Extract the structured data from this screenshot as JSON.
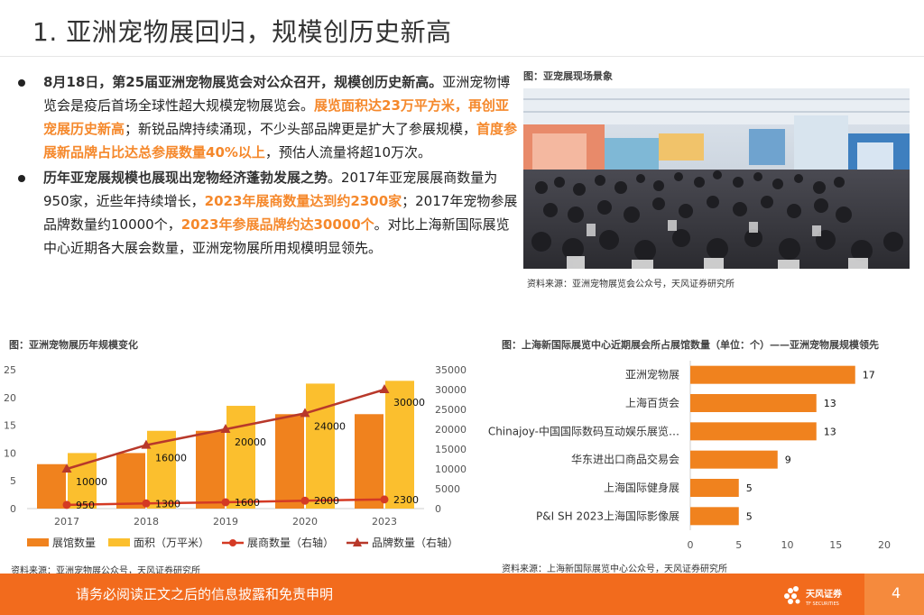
{
  "page": {
    "title": "1. 亚洲宠物展回归，规模创历史新高",
    "number": "4"
  },
  "bullets": [
    {
      "segments": [
        {
          "t": "8月18日，第25届亚洲宠物展览会对公众召开，规模创历史新高。",
          "s": "bold"
        },
        {
          "t": "亚洲宠物博览会是疫后首场全球性超大规模宠物展览会。",
          "s": "n"
        },
        {
          "t": "展览面积达23万平方米，再创亚宠展历史新高",
          "s": "hl"
        },
        {
          "t": "；新锐品牌持续涌现，不少头部品牌更是扩大了参展规模，",
          "s": "n"
        },
        {
          "t": "首度参展新品牌占比达总参展数量40%以上",
          "s": "hl"
        },
        {
          "t": "，预估人流量将超10万次。",
          "s": "n"
        }
      ]
    },
    {
      "segments": [
        {
          "t": "历年亚宠展规模也展现出宠物经济蓬勃发展之势",
          "s": "bold"
        },
        {
          "t": "。2017年亚宠展展商数量为950家，近些年持续增长，",
          "s": "n"
        },
        {
          "t": "2023年展商数量达到约2300家",
          "s": "hl"
        },
        {
          "t": "；2017年宠物参展品牌数量约10000个，",
          "s": "n"
        },
        {
          "t": "2023年参展品牌约达30000个",
          "s": "hl"
        },
        {
          "t": "。对比上海新国际展览中心近期各大展会数量，亚洲宠物展所用规模明显领先。",
          "s": "n"
        }
      ]
    }
  ],
  "photo": {
    "caption": "图：亚宠展现场景象",
    "source": "资料来源：亚洲宠物展览会公众号，天风证券研究所"
  },
  "chart1": {
    "caption": "图：亚洲宠物展历年规模变化",
    "source": "资料来源：亚洲宠物展公众号，天风证券研究所"
  },
  "chart2": {
    "caption": "图：上海新国际展览中心近期展会所占展馆数量（单位：个）——亚洲宠物展规模领先",
    "source": "资料来源：上海新国际展览中心公众号，天风证券研究所"
  },
  "chart_data": [
    {
      "type": "bar",
      "categories": [
        "2017",
        "2018",
        "2019",
        "2020",
        "2023"
      ],
      "series": [
        {
          "name": "展馆数量",
          "kind": "bar",
          "axis": "left",
          "color": "#f0821e",
          "values": [
            8,
            10,
            14,
            17,
            17
          ]
        },
        {
          "name": "面积（万平米）",
          "kind": "bar",
          "axis": "left",
          "color": "#fbbf2e",
          "values": [
            10,
            14,
            18.5,
            22.5,
            23
          ]
        },
        {
          "name": "展商数量（右轴）",
          "kind": "line",
          "axis": "right",
          "color": "#d43a24",
          "marker": "circle",
          "values": [
            950,
            1300,
            1600,
            2000,
            2300
          ]
        },
        {
          "name": "品牌数量（右轴）",
          "kind": "line",
          "axis": "right",
          "color": "#b8382a",
          "marker": "triangle",
          "values": [
            10000,
            16000,
            20000,
            24000,
            30000
          ]
        }
      ],
      "ylim_left": [
        0,
        25
      ],
      "ylim_right": [
        0,
        35000
      ],
      "yticks_left": [
        0,
        5,
        10,
        15,
        20,
        25
      ],
      "yticks_right": [
        0,
        5000,
        10000,
        15000,
        20000,
        25000,
        30000,
        35000
      ],
      "grid": false,
      "legend": "bottom"
    },
    {
      "type": "bar",
      "orientation": "horizontal",
      "categories": [
        "亚洲宠物展",
        "上海百货会",
        "Chinajoy-中国国际数码互动娱乐展览…",
        "华东进出口商品交易会",
        "上海国际健身展",
        "P&I SH 2023上海国际影像展"
      ],
      "values": [
        17,
        13,
        13,
        9,
        5,
        5
      ],
      "color": "#f0821e",
      "xlim": [
        0,
        20
      ],
      "xticks": [
        0,
        5,
        10,
        15,
        20
      ],
      "grid": false
    }
  ]
}
